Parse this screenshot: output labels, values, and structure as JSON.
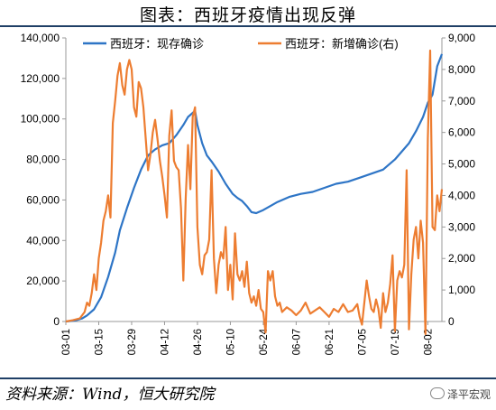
{
  "title": "图表：西班牙疫情出现反弹",
  "source": "资料来源：Wind，恒大研究院",
  "brand": "泽平宏观",
  "chart_data": {
    "type": "line",
    "x_tick_labels": [
      "03-01",
      "03-15",
      "03-29",
      "04-12",
      "04-26",
      "05-10",
      "05-24",
      "06-07",
      "06-21",
      "07-05",
      "07-19",
      "08-02"
    ],
    "x_range": [
      "03-01",
      "08-08"
    ],
    "y_left": {
      "lim": [
        0,
        140000
      ],
      "ticks": [
        "0",
        "20,000",
        "40,000",
        "60,000",
        "80,000",
        "100,000",
        "120,000",
        "140,000"
      ]
    },
    "y_right": {
      "lim": [
        0,
        9000
      ],
      "ticks": [
        "0",
        "1,000",
        "2,000",
        "3,000",
        "4,000",
        "5,000",
        "6,000",
        "7,000",
        "8,000",
        "9,000"
      ]
    },
    "legend_position": "top",
    "series": [
      {
        "name": "西班牙：现存确诊",
        "axis": "left",
        "color": "#2e75c6",
        "points": [
          [
            "03-01",
            0
          ],
          [
            "03-05",
            500
          ],
          [
            "03-08",
            1500
          ],
          [
            "03-10",
            3000
          ],
          [
            "03-13",
            6000
          ],
          [
            "03-16",
            12000
          ],
          [
            "03-19",
            22000
          ],
          [
            "03-22",
            34000
          ],
          [
            "03-24",
            45000
          ],
          [
            "03-27",
            56000
          ],
          [
            "03-30",
            66000
          ],
          [
            "04-02",
            75000
          ],
          [
            "04-05",
            82000
          ],
          [
            "04-08",
            85000
          ],
          [
            "04-11",
            87000
          ],
          [
            "04-14",
            88000
          ],
          [
            "04-17",
            92000
          ],
          [
            "04-20",
            97000
          ],
          [
            "04-22",
            101000
          ],
          [
            "04-24",
            103000
          ],
          [
            "04-25",
            104000
          ],
          [
            "04-26",
            97000
          ],
          [
            "04-28",
            88000
          ],
          [
            "04-30",
            82000
          ],
          [
            "05-02",
            79000
          ],
          [
            "05-05",
            74000
          ],
          [
            "05-08",
            68000
          ],
          [
            "05-11",
            63000
          ],
          [
            "05-13",
            61000
          ],
          [
            "05-15",
            59500
          ],
          [
            "05-17",
            57000
          ],
          [
            "05-19",
            54000
          ],
          [
            "05-21",
            53500
          ],
          [
            "05-24",
            55000
          ],
          [
            "05-27",
            57000
          ],
          [
            "05-30",
            59000
          ],
          [
            "06-04",
            61500
          ],
          [
            "06-09",
            63000
          ],
          [
            "06-14",
            64000
          ],
          [
            "06-19",
            66000
          ],
          [
            "06-24",
            68000
          ],
          [
            "06-29",
            69000
          ],
          [
            "07-04",
            71000
          ],
          [
            "07-09",
            73000
          ],
          [
            "07-14",
            75000
          ],
          [
            "07-19",
            80000
          ],
          [
            "07-22",
            84000
          ],
          [
            "07-25",
            88000
          ],
          [
            "07-28",
            94000
          ],
          [
            "07-31",
            101000
          ],
          [
            "08-02",
            108000
          ],
          [
            "08-04",
            112000
          ],
          [
            "08-06",
            126000
          ],
          [
            "08-08",
            132000
          ]
        ]
      },
      {
        "name": "西班牙：新增确诊(右)",
        "axis": "right",
        "color": "#ed7d31",
        "points": [
          [
            "03-01",
            0
          ],
          [
            "03-04",
            40
          ],
          [
            "03-07",
            100
          ],
          [
            "03-09",
            300
          ],
          [
            "03-10",
            600
          ],
          [
            "03-11",
            500
          ],
          [
            "03-12",
            900
          ],
          [
            "03-13",
            1500
          ],
          [
            "03-14",
            1000
          ],
          [
            "03-15",
            2000
          ],
          [
            "03-16",
            2500
          ],
          [
            "03-17",
            3200
          ],
          [
            "03-18",
            3500
          ],
          [
            "03-19",
            4000
          ],
          [
            "03-20",
            3300
          ],
          [
            "03-21",
            6300
          ],
          [
            "03-22",
            7000
          ],
          [
            "03-23",
            7800
          ],
          [
            "03-24",
            8200
          ],
          [
            "03-25",
            7500
          ],
          [
            "03-26",
            7200
          ],
          [
            "03-27",
            8000
          ],
          [
            "03-28",
            8300
          ],
          [
            "03-29",
            8000
          ],
          [
            "03-30",
            6800
          ],
          [
            "03-31",
            6500
          ],
          [
            "04-01",
            7600
          ],
          [
            "04-02",
            7400
          ],
          [
            "04-03",
            6800
          ],
          [
            "04-04",
            5800
          ],
          [
            "04-05",
            4800
          ],
          [
            "04-06",
            5300
          ],
          [
            "04-07",
            6000
          ],
          [
            "04-08",
            6400
          ],
          [
            "04-09",
            5800
          ],
          [
            "04-10",
            5100
          ],
          [
            "04-11",
            4600
          ],
          [
            "04-12",
            4000
          ],
          [
            "04-13",
            3300
          ],
          [
            "04-14",
            5900
          ],
          [
            "04-15",
            6700
          ],
          [
            "04-16",
            5100
          ],
          [
            "04-17",
            4900
          ],
          [
            "04-18",
            4800
          ],
          [
            "04-19",
            3600
          ],
          [
            "04-20",
            1300
          ],
          [
            "04-21",
            3900
          ],
          [
            "04-22",
            5600
          ],
          [
            "04-23",
            4200
          ],
          [
            "04-24",
            6500
          ],
          [
            "04-25",
            6800
          ],
          [
            "04-26",
            3000
          ],
          [
            "04-27",
            1800
          ],
          [
            "04-28",
            1500
          ],
          [
            "04-29",
            2100
          ],
          [
            "04-30",
            2200
          ],
          [
            "05-01",
            2600
          ],
          [
            "05-02",
            4800
          ],
          [
            "05-03",
            2000
          ],
          [
            "05-04",
            900
          ],
          [
            "05-05",
            1800
          ],
          [
            "05-06",
            2200
          ],
          [
            "05-07",
            2000
          ],
          [
            "05-08",
            3000
          ],
          [
            "05-09",
            1000
          ],
          [
            "05-10",
            1800
          ],
          [
            "05-11",
            700
          ],
          [
            "05-12",
            2800
          ],
          [
            "05-13",
            1500
          ],
          [
            "05-14",
            1300
          ],
          [
            "05-15",
            1600
          ],
          [
            "05-16",
            1100
          ],
          [
            "05-17",
            1900
          ],
          [
            "05-18",
            900
          ],
          [
            "05-19",
            600
          ],
          [
            "05-20",
            800
          ],
          [
            "05-21",
            500
          ],
          [
            "05-22",
            1000
          ],
          [
            "05-23",
            400
          ],
          [
            "05-24",
            300
          ],
          [
            "05-25",
            -350
          ],
          [
            "05-26",
            1600
          ],
          [
            "05-27",
            1300
          ],
          [
            "05-28",
            1600
          ],
          [
            "05-29",
            800
          ],
          [
            "05-30",
            500
          ],
          [
            "05-31",
            600
          ],
          [
            "06-01",
            300
          ],
          [
            "06-03",
            450
          ],
          [
            "06-05",
            350
          ],
          [
            "06-07",
            200
          ],
          [
            "06-09",
            350
          ],
          [
            "06-11",
            600
          ],
          [
            "06-13",
            250
          ],
          [
            "06-15",
            350
          ],
          [
            "06-17",
            450
          ],
          [
            "06-19",
            300
          ],
          [
            "06-21",
            150
          ],
          [
            "06-23",
            400
          ],
          [
            "06-25",
            300
          ],
          [
            "06-27",
            550
          ],
          [
            "06-29",
            300
          ],
          [
            "07-01",
            350
          ],
          [
            "07-03",
            550
          ],
          [
            "07-04",
            150
          ],
          [
            "07-05",
            -100
          ],
          [
            "07-06",
            600
          ],
          [
            "07-07",
            1300
          ],
          [
            "07-08",
            800
          ],
          [
            "07-09",
            400
          ],
          [
            "07-10",
            300
          ],
          [
            "07-11",
            700
          ],
          [
            "07-12",
            400
          ],
          [
            "07-13",
            -200
          ],
          [
            "07-14",
            900
          ],
          [
            "07-15",
            300
          ],
          [
            "07-16",
            600
          ],
          [
            "07-17",
            1200
          ],
          [
            "07-18",
            2100
          ],
          [
            "07-19",
            -300
          ],
          [
            "07-20",
            1300
          ],
          [
            "07-21",
            1600
          ],
          [
            "07-22",
            1400
          ],
          [
            "07-23",
            1800
          ],
          [
            "07-24",
            4800
          ],
          [
            "07-25",
            -250
          ],
          [
            "07-26",
            1500
          ],
          [
            "07-27",
            2600
          ],
          [
            "07-28",
            3000
          ],
          [
            "07-29",
            2000
          ],
          [
            "07-30",
            3200
          ],
          [
            "07-31",
            2500
          ],
          [
            "08-01",
            -400
          ],
          [
            "08-02",
            5800
          ],
          [
            "08-03",
            8600
          ],
          [
            "08-04",
            3000
          ],
          [
            "08-05",
            2900
          ],
          [
            "08-06",
            4000
          ],
          [
            "08-07",
            3500
          ],
          [
            "08-08",
            4200
          ]
        ]
      }
    ]
  }
}
